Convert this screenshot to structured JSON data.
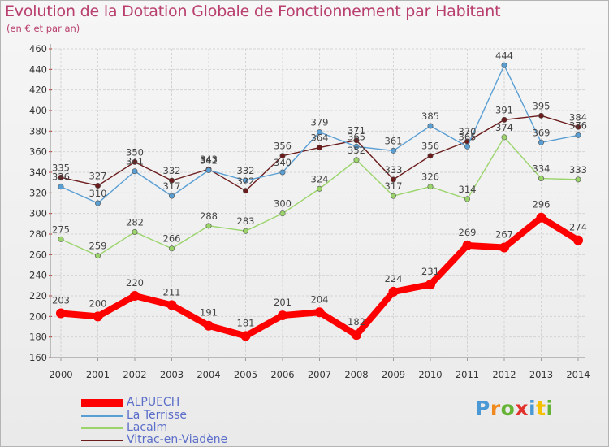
{
  "title": "Evolution de la Dotation Globale de Fonctionnement par Habitant",
  "subtitle": "(en € et par an)",
  "colors": {
    "title": "#b9406e",
    "axis": "#9a9a9a",
    "grid": "#d4d4d4",
    "tick_label": "#333333",
    "data_label": "#444444",
    "legend_text": "#5b6ec9"
  },
  "logo": {
    "letters": [
      "P",
      "r",
      "o",
      "x",
      "i",
      "t",
      "i"
    ],
    "colors": [
      "#4a98d4",
      "#f18a1e",
      "#66b436",
      "#e2302a",
      "#4a98d4",
      "#f5c000",
      "#66b436"
    ]
  },
  "chart_data": {
    "type": "line",
    "title": "Evolution de la Dotation Globale de Fonctionnement par Habitant",
    "subtitle": "(en € et par an)",
    "x": [
      "2000",
      "2001",
      "2002",
      "2003",
      "2004",
      "2005",
      "2006",
      "2007",
      "2008",
      "2009",
      "2010",
      "2011",
      "2012",
      "2013",
      "2014"
    ],
    "ylim": [
      160,
      460
    ],
    "yticks": [
      160,
      180,
      200,
      220,
      240,
      260,
      280,
      300,
      320,
      340,
      360,
      380,
      400,
      420,
      440,
      460
    ],
    "grid": true,
    "legend_position": "bottom-left",
    "series": [
      {
        "name": "ALPUECH",
        "color": "#ff0000",
        "values": [
          203,
          200,
          220,
          211,
          191,
          181,
          201,
          204,
          182,
          224,
          231,
          269,
          267,
          296,
          274
        ]
      },
      {
        "name": "La Terrisse",
        "color": "#5a9fd4",
        "values": [
          326,
          310,
          341,
          317,
          342,
          332,
          340,
          379,
          365,
          361,
          385,
          365,
          444,
          369,
          376
        ]
      },
      {
        "name": "Lacalm",
        "color": "#9ad46a",
        "values": [
          275,
          259,
          282,
          266,
          288,
          283,
          300,
          324,
          352,
          317,
          326,
          314,
          374,
          334,
          333
        ]
      },
      {
        "name": "Vitrac-en-Viadène",
        "color": "#6b1c1c",
        "values": [
          335,
          327,
          350,
          332,
          343,
          322,
          356,
          364,
          371,
          333,
          356,
          370,
          391,
          395,
          384
        ]
      }
    ]
  }
}
